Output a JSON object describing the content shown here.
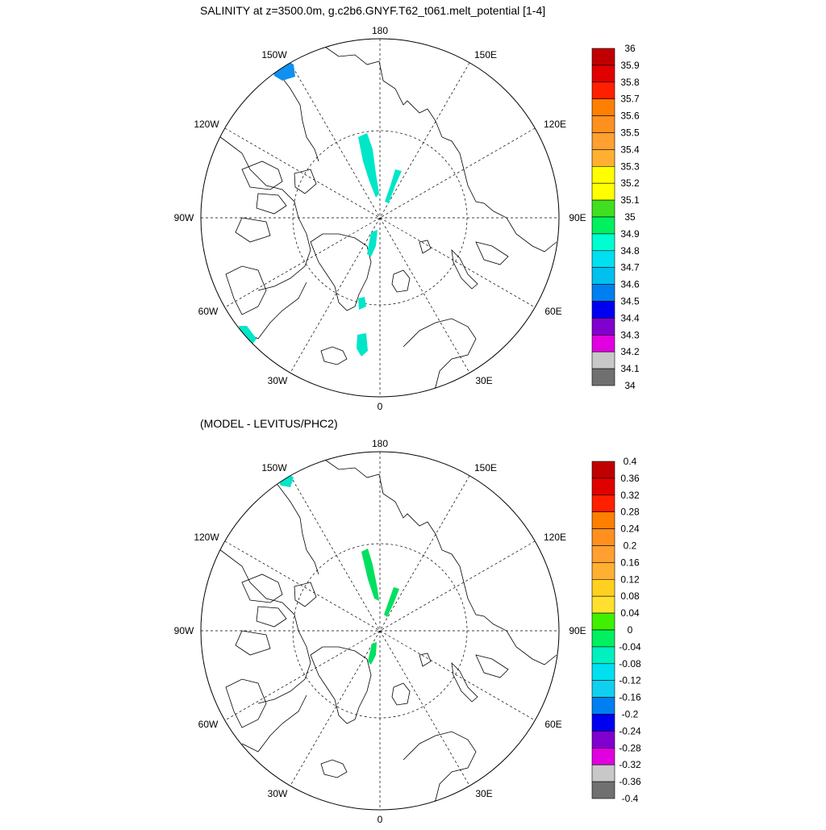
{
  "top": {
    "title": "SALINITY at z=3500.0m, g.c2b6.GNYF.T62_t061.melt_potential [1-4]",
    "lon_labels": [
      "180",
      "150E",
      "120E",
      "90E",
      "60E",
      "30E",
      "0",
      "30W",
      "60W",
      "90W",
      "120W",
      "150W"
    ],
    "colorbar": {
      "labels": [
        "36",
        "35.9",
        "35.8",
        "35.7",
        "35.6",
        "35.5",
        "35.4",
        "35.3",
        "35.2",
        "35.1",
        "35",
        "34.9",
        "34.8",
        "34.7",
        "34.6",
        "34.5",
        "34.4",
        "34.3",
        "34.2",
        "34.1",
        "34"
      ],
      "colors": [
        "#c00000",
        "#e00000",
        "#ff2000",
        "#ff8000",
        "#ff9020",
        "#ffa030",
        "#ffb030",
        "#ffff00",
        "#ffff00",
        "#40e020",
        "#00f060",
        "#00ffd0",
        "#00e0f0",
        "#00c0f0",
        "#0080f0",
        "#0000f0",
        "#8000d0",
        "#e000e0",
        "#c8c8c8",
        "#707070"
      ]
    }
  },
  "bottom": {
    "title": "(MODEL - LEVITUS/PHC2)",
    "lon_labels": [
      "180",
      "150E",
      "120E",
      "90E",
      "60E",
      "30E",
      "0",
      "30W",
      "60W",
      "90W",
      "120W",
      "150W"
    ],
    "colorbar": {
      "labels": [
        "0.4",
        "0.36",
        "0.32",
        "0.28",
        "0.24",
        "0.2",
        "0.16",
        "0.12",
        "0.08",
        "0.04",
        "0",
        "-0.04",
        "-0.08",
        "-0.12",
        "-0.16",
        "-0.2",
        "-0.24",
        "-0.28",
        "-0.32",
        "-0.36",
        "-0.4"
      ],
      "colors": [
        "#c00000",
        "#e00000",
        "#ff2000",
        "#ff8000",
        "#ff9020",
        "#ffa030",
        "#ffb030",
        "#ffd020",
        "#ffe030",
        "#40f000",
        "#00f060",
        "#00f0c0",
        "#00e0f0",
        "#10d0f0",
        "#0080f0",
        "#0000f0",
        "#8000d0",
        "#e000e0",
        "#c8c8c8",
        "#707070"
      ]
    }
  }
}
